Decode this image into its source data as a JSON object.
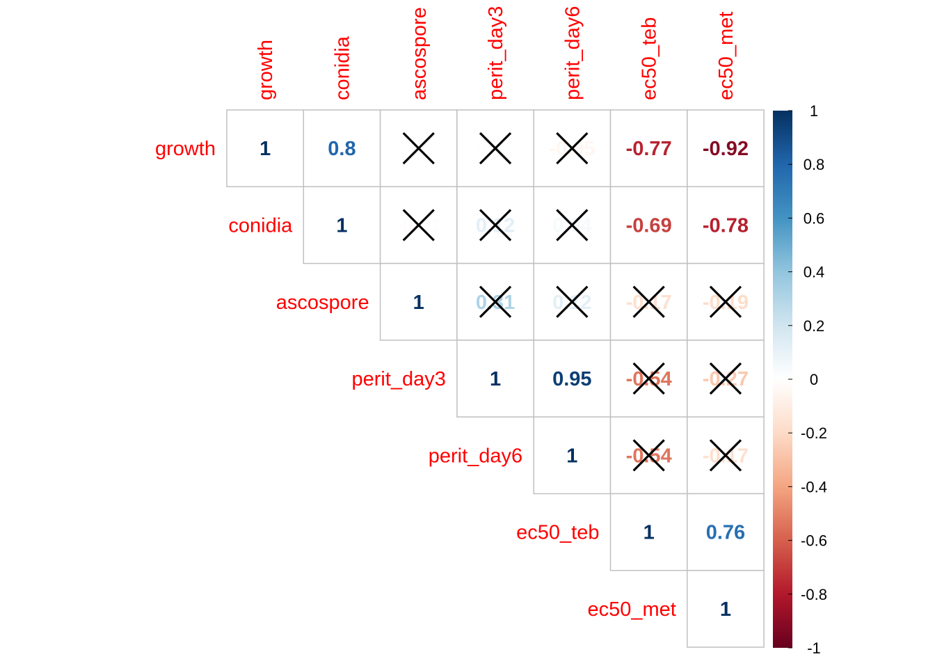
{
  "chart_data": {
    "type": "heatmap",
    "subtype": "correlation-matrix-upper-triangle",
    "variables": [
      "growth",
      "conidia",
      "ascospore",
      "perit_day3",
      "perit_day6",
      "ec50_teb",
      "ec50_met"
    ],
    "cells": [
      {
        "row": "growth",
        "col": "growth",
        "label": "1",
        "value": 1,
        "crossed": false
      },
      {
        "row": "growth",
        "col": "conidia",
        "label": "0.8",
        "value": 0.8,
        "crossed": false
      },
      {
        "row": "growth",
        "col": "ascospore",
        "label": "",
        "value": 0.0,
        "crossed": true
      },
      {
        "row": "growth",
        "col": "perit_day3",
        "label": "0.01",
        "value": 0.01,
        "crossed": true
      },
      {
        "row": "growth",
        "col": "perit_day6",
        "label": "-0.05",
        "value": -0.05,
        "crossed": true
      },
      {
        "row": "growth",
        "col": "ec50_teb",
        "label": "-0.77",
        "value": -0.77,
        "crossed": false
      },
      {
        "row": "growth",
        "col": "ec50_met",
        "label": "-0.92",
        "value": -0.92,
        "crossed": false
      },
      {
        "row": "conidia",
        "col": "conidia",
        "label": "1",
        "value": 1,
        "crossed": false
      },
      {
        "row": "conidia",
        "col": "ascospore",
        "label": "-0.01",
        "value": -0.01,
        "crossed": true
      },
      {
        "row": "conidia",
        "col": "perit_day3",
        "label": "0.12",
        "value": 0.12,
        "crossed": true
      },
      {
        "row": "conidia",
        "col": "perit_day6",
        "label": "0.04",
        "value": 0.04,
        "crossed": true
      },
      {
        "row": "conidia",
        "col": "ec50_teb",
        "label": "-0.69",
        "value": -0.69,
        "crossed": false
      },
      {
        "row": "conidia",
        "col": "ec50_met",
        "label": "-0.78",
        "value": -0.78,
        "crossed": false
      },
      {
        "row": "ascospore",
        "col": "ascospore",
        "label": "1",
        "value": 1,
        "crossed": false
      },
      {
        "row": "ascospore",
        "col": "perit_day3",
        "label": "0.31",
        "value": 0.31,
        "crossed": true
      },
      {
        "row": "ascospore",
        "col": "perit_day6",
        "label": "0.12",
        "value": 0.12,
        "crossed": true
      },
      {
        "row": "ascospore",
        "col": "ec50_teb",
        "label": "-0.17",
        "value": -0.17,
        "crossed": true
      },
      {
        "row": "ascospore",
        "col": "ec50_met",
        "label": "-0.19",
        "value": -0.19,
        "crossed": true
      },
      {
        "row": "perit_day3",
        "col": "perit_day3",
        "label": "1",
        "value": 1,
        "crossed": false
      },
      {
        "row": "perit_day3",
        "col": "perit_day6",
        "label": "0.95",
        "value": 0.95,
        "crossed": false
      },
      {
        "row": "perit_day3",
        "col": "ec50_teb",
        "label": "-0.54",
        "value": -0.54,
        "crossed": true
      },
      {
        "row": "perit_day3",
        "col": "ec50_met",
        "label": "-0.27",
        "value": -0.27,
        "crossed": true
      },
      {
        "row": "perit_day6",
        "col": "perit_day6",
        "label": "1",
        "value": 1,
        "crossed": false
      },
      {
        "row": "perit_day6",
        "col": "ec50_teb",
        "label": "-0.54",
        "value": -0.54,
        "crossed": true
      },
      {
        "row": "perit_day6",
        "col": "ec50_met",
        "label": "-0.17",
        "value": -0.17,
        "crossed": true
      },
      {
        "row": "ec50_teb",
        "col": "ec50_teb",
        "label": "1",
        "value": 1,
        "crossed": false
      },
      {
        "row": "ec50_teb",
        "col": "ec50_met",
        "label": "0.76",
        "value": 0.76,
        "crossed": false
      },
      {
        "row": "ec50_met",
        "col": "ec50_met",
        "label": "1",
        "value": 1,
        "crossed": false
      }
    ],
    "colorbar": {
      "range": [
        -1,
        1
      ],
      "ticks": [
        "1",
        "0.8",
        "0.6",
        "0.4",
        "0.2",
        "0",
        "-0.2",
        "-0.4",
        "-0.6",
        "-0.8",
        "-1"
      ],
      "tick_values": [
        1,
        0.8,
        0.6,
        0.4,
        0.2,
        0,
        -0.2,
        -0.4,
        -0.6,
        -0.8,
        -1
      ],
      "palette": [
        "#67001F",
        "#B2182B",
        "#D6604D",
        "#F4A582",
        "#FDDBC7",
        "#FFFFFF",
        "#D1E5F0",
        "#92C5DE",
        "#4393C3",
        "#2166AC",
        "#053061"
      ]
    },
    "label_color": "#FF0000",
    "grid_color": "#C0C0C0",
    "cross_color": "#000000"
  }
}
